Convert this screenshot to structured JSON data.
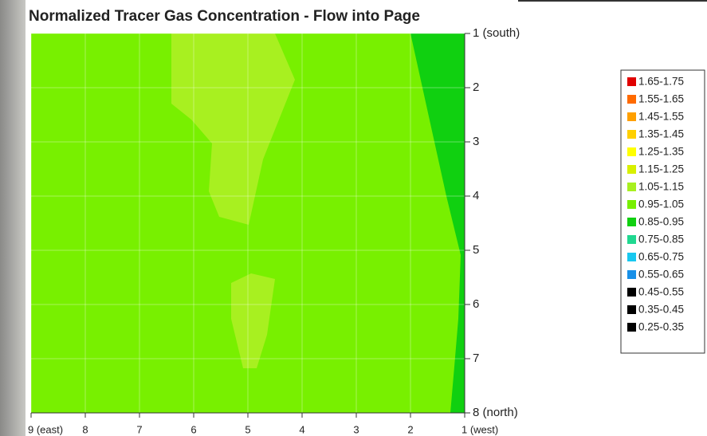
{
  "chart_data": {
    "type": "contour",
    "title": "Normalized Tracer Gas Concentration - Flow into Page",
    "xlim": [
      9,
      1
    ],
    "xticks": [
      {
        "value": 9,
        "label": "9 (east)"
      },
      8,
      7,
      6,
      5,
      4,
      3,
      2,
      {
        "value": 1,
        "label": "1 (west)"
      }
    ],
    "ylim": [
      1,
      8
    ],
    "yticks": [
      {
        "value": 1,
        "label": "1 (south)"
      },
      2,
      3,
      4,
      5,
      6,
      7,
      {
        "value": 8,
        "label": "8 (north)"
      }
    ],
    "grid": true,
    "legend_position": "right",
    "legend": [
      {
        "label": "1.65-1.75",
        "color": "#e00000"
      },
      {
        "label": "1.55-1.65",
        "color": "#ff6a00"
      },
      {
        "label": "1.45-1.55",
        "color": "#ffa000"
      },
      {
        "label": "1.35-1.45",
        "color": "#ffd000"
      },
      {
        "label": "1.25-1.35",
        "color": "#ffff00"
      },
      {
        "label": "1.15-1.25",
        "color": "#d8f000"
      },
      {
        "label": "1.05-1.15",
        "color": "#a8f020"
      },
      {
        "label": "0.95-1.05",
        "color": "#78f000"
      },
      {
        "label": "0.85-0.95",
        "color": "#10d010"
      },
      {
        "label": "0.75-0.85",
        "color": "#20d890"
      },
      {
        "label": "0.65-0.75",
        "color": "#18c8f0"
      },
      {
        "label": "0.55-0.65",
        "color": "#1890e8"
      },
      {
        "label": "0.45-0.55",
        "color": "#000000"
      },
      {
        "label": "0.35-0.45",
        "color": "#000000"
      },
      {
        "label": "0.25-0.35",
        "color": "#000000"
      }
    ]
  }
}
